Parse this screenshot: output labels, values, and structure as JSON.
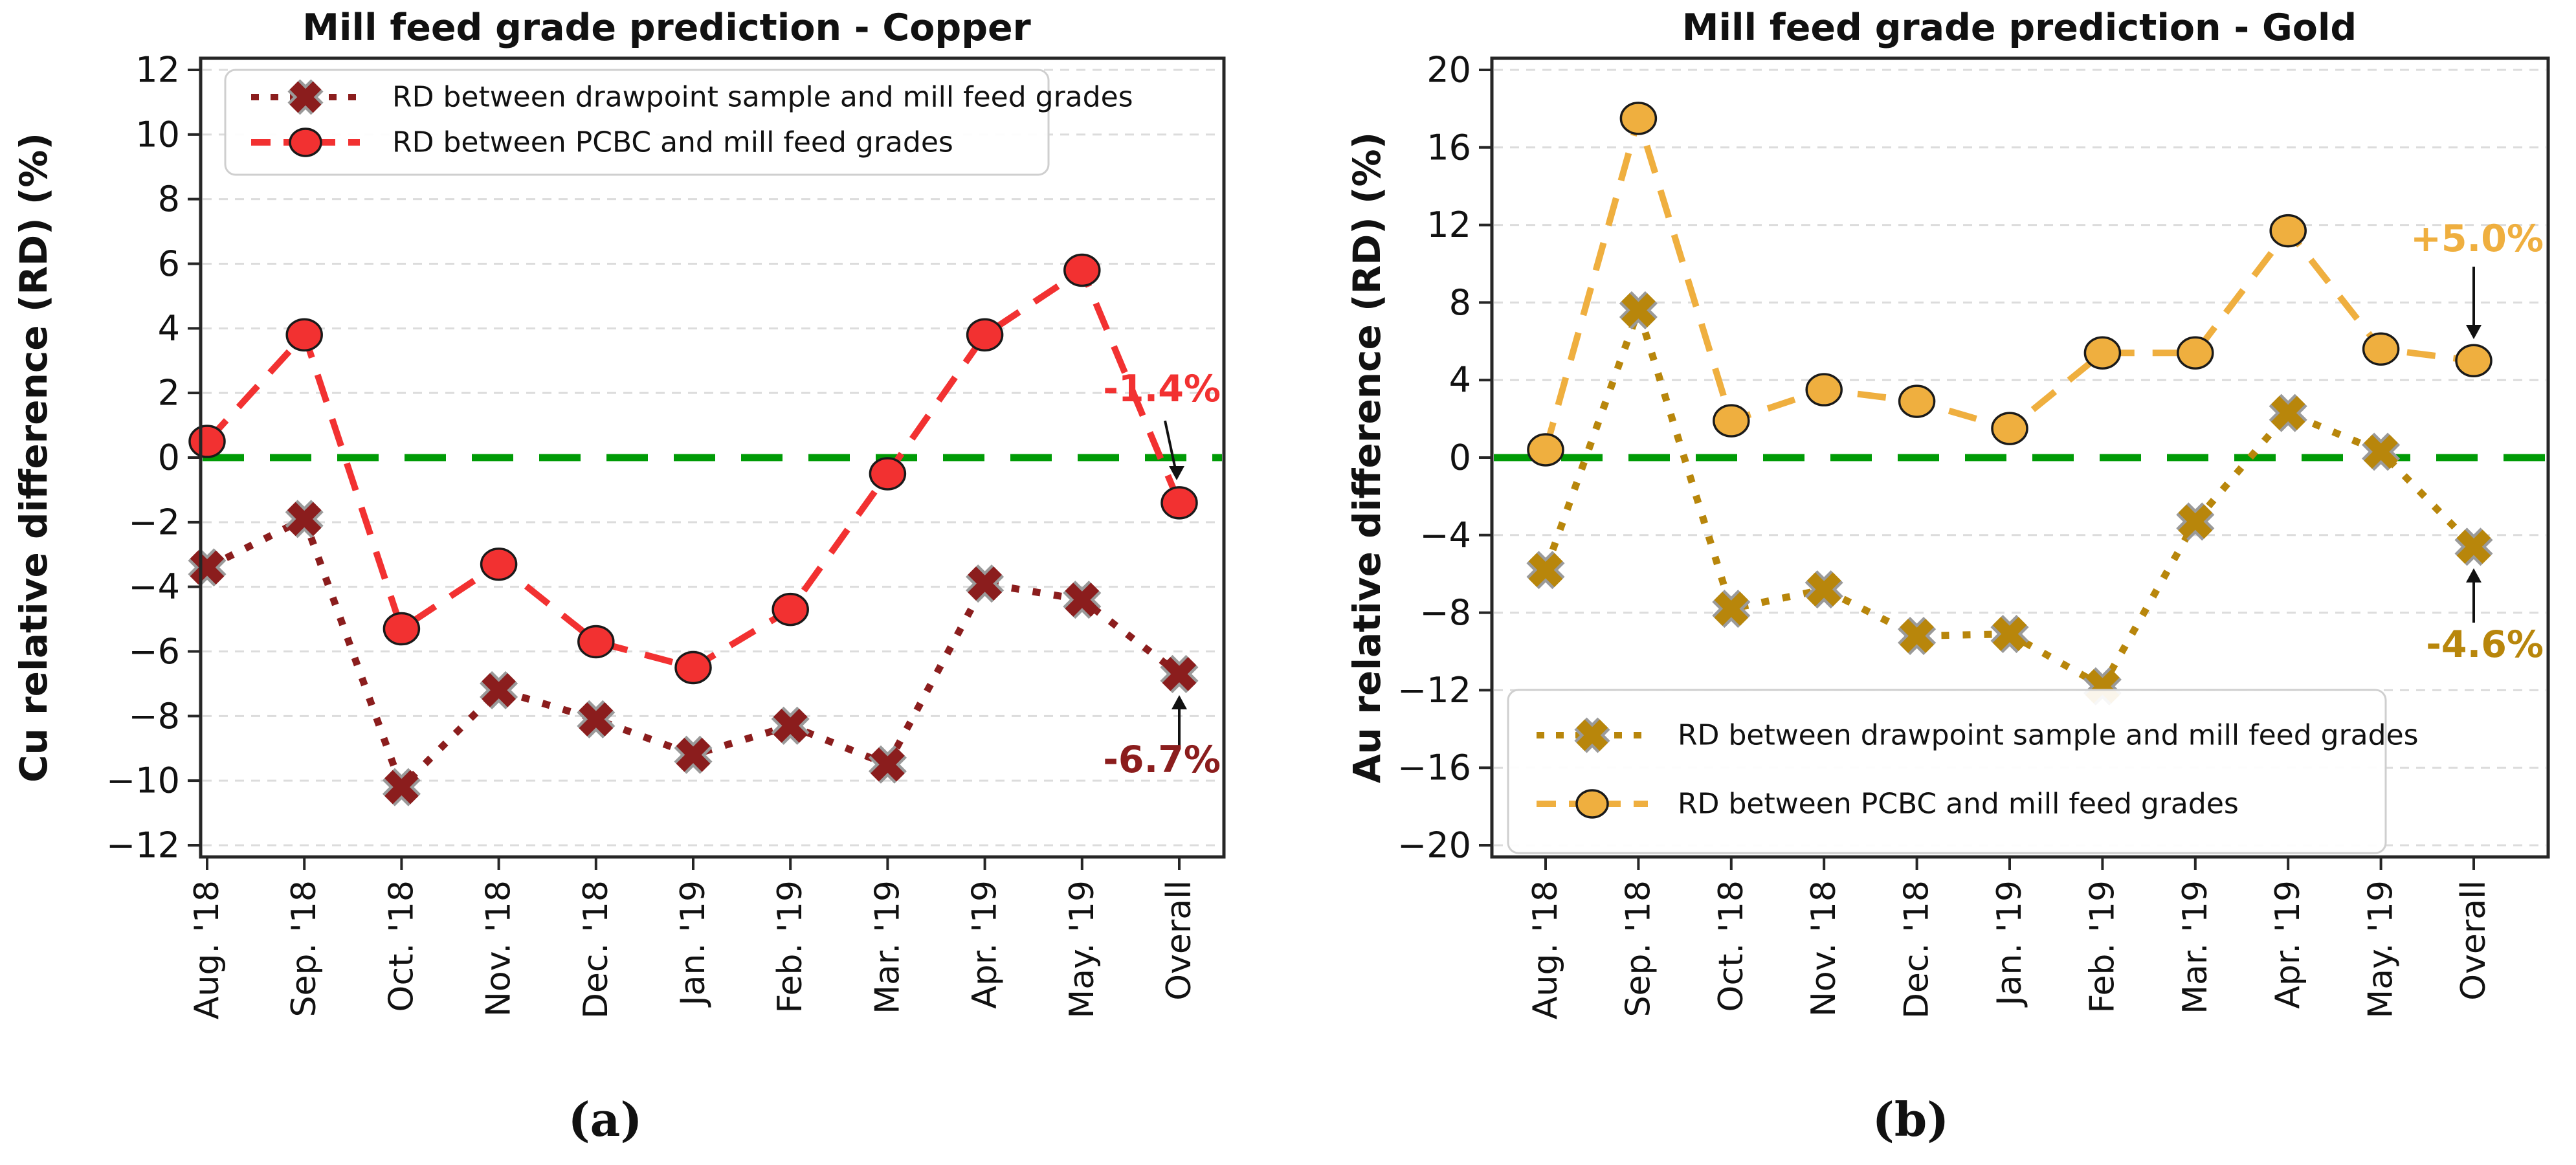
{
  "figure": {
    "background": "#ffffff",
    "style": {
      "grid_color": "#dcdcdc",
      "spine_color": "#262626",
      "tick_color": "#262626",
      "text_color": "#111111",
      "circle_marker_edge": "#1a1a1a",
      "x_marker_edge": "#9a9a9a",
      "arrow_color": "#111111",
      "legend_border": "#cfcfcf",
      "legend_background": "#ffffff"
    }
  },
  "chart_data": [
    {
      "type": "line",
      "id": "copper",
      "title": "Mill feed grade prediction - Copper",
      "ylabel": "Cu relative difference (RD) (%)",
      "xlabel": "",
      "ylim": [
        -12,
        12
      ],
      "ytick_step": 2,
      "yticks": [
        12,
        10,
        8,
        6,
        4,
        2,
        0,
        -2,
        -4,
        -6,
        -8,
        -10,
        -12
      ],
      "yticklabels": [
        "12",
        "10",
        "8",
        "6",
        "4",
        "2",
        "0",
        "−2",
        "−4",
        "−6",
        "−8",
        "−10",
        "−12"
      ],
      "grid": true,
      "legend_position": "top-left",
      "caption": "(a)",
      "categories": [
        "Aug. '18",
        "Sep. '18",
        "Oct. '18",
        "Nov. '18",
        "Dec. '18",
        "Jan. '19",
        "Feb. '19",
        "Mar. '19",
        "Apr. '19",
        "May. '19",
        "Overall"
      ],
      "zero_line": {
        "value": 0,
        "color": "#009B06",
        "style": "dashed"
      },
      "series": [
        {
          "name": "drawpoint",
          "label": "RD between drawpoint sample and mill feed grades",
          "marker": "X",
          "line_style": "dotted",
          "color": "#8B1D1D",
          "values": [
            -3.4,
            -1.9,
            -10.2,
            -7.2,
            -8.1,
            -9.2,
            -8.3,
            -9.5,
            -3.9,
            -4.4,
            -6.7
          ]
        },
        {
          "name": "pcbc",
          "label": "RD between PCBC and mill feed grades",
          "marker": "circle",
          "line_style": "dashed",
          "color": "#F23131",
          "values": [
            0.5,
            3.8,
            -5.3,
            -3.3,
            -5.7,
            -6.5,
            -4.7,
            -0.5,
            3.8,
            5.8,
            -1.4
          ]
        }
      ],
      "annotations": [
        {
          "text": "-1.4%",
          "color": "#F23131",
          "target_series": "pcbc",
          "target_category": "Overall",
          "target_value": -1.4,
          "label_side": "above"
        },
        {
          "text": "-6.7%",
          "color": "#8B1D1D",
          "target_series": "drawpoint",
          "target_category": "Overall",
          "target_value": -6.7,
          "label_side": "below"
        }
      ]
    },
    {
      "type": "line",
      "id": "gold",
      "title": "Mill feed grade prediction - Gold",
      "ylabel": "Au relative difference (RD) (%)",
      "xlabel": "",
      "ylim": [
        -20,
        20
      ],
      "ytick_step": 4,
      "yticks": [
        20,
        16,
        12,
        8,
        4,
        0,
        -4,
        -8,
        -12,
        -16,
        -20
      ],
      "yticklabels": [
        "20",
        "16",
        "12",
        "8",
        "4",
        "0",
        "−4",
        "−8",
        "−12",
        "−16",
        "−20"
      ],
      "grid": true,
      "legend_position": "bottom-left",
      "caption": "(b)",
      "categories": [
        "Aug. '18",
        "Sep. '18",
        "Oct. '18",
        "Nov. '18",
        "Dec. '18",
        "Jan. '19",
        "Feb. '19",
        "Mar. '19",
        "Apr. '19",
        "May. '19",
        "Overall"
      ],
      "zero_line": {
        "value": 0,
        "color": "#009B06",
        "style": "dashed"
      },
      "series": [
        {
          "name": "drawpoint",
          "label": "RD between drawpoint sample and mill feed grades",
          "marker": "X",
          "line_style": "dotted",
          "color": "#B8860B",
          "values": [
            -5.8,
            7.6,
            -7.8,
            -6.8,
            -9.2,
            -9.1,
            -11.8,
            -3.3,
            2.3,
            0.3,
            -4.6
          ]
        },
        {
          "name": "pcbc",
          "label": "RD between PCBC and mill feed grades",
          "marker": "circle",
          "line_style": "dashed",
          "color": "#EFAF3F",
          "values": [
            0.4,
            17.5,
            1.9,
            3.5,
            2.9,
            1.5,
            5.4,
            5.4,
            11.7,
            5.6,
            5.0
          ]
        }
      ],
      "annotations": [
        {
          "text": "+5.0%",
          "color": "#EFAF3F",
          "target_series": "pcbc",
          "target_category": "Overall",
          "target_value": 5.0,
          "label_side": "above"
        },
        {
          "text": "-4.6%",
          "color": "#B8860B",
          "target_series": "drawpoint",
          "target_category": "Overall",
          "target_value": -4.6,
          "label_side": "below"
        }
      ]
    }
  ]
}
